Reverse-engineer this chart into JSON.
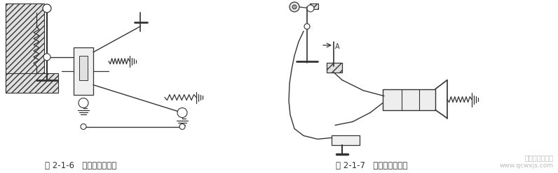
{
  "fig_width": 7.96,
  "fig_height": 2.48,
  "dpi": 100,
  "bg_color": "#ffffff",
  "left_caption": "图 2-1-6   杆系式操纵机构",
  "right_caption": "图 2-1-7   拉索式操纵机构",
  "watermark_line1": "汽车维修技术网",
  "watermark_line2": "www.qcwxjs.com",
  "caption_fontsize": 8.5,
  "caption_color": "#333333",
  "watermark_color": "#bbbbbb"
}
